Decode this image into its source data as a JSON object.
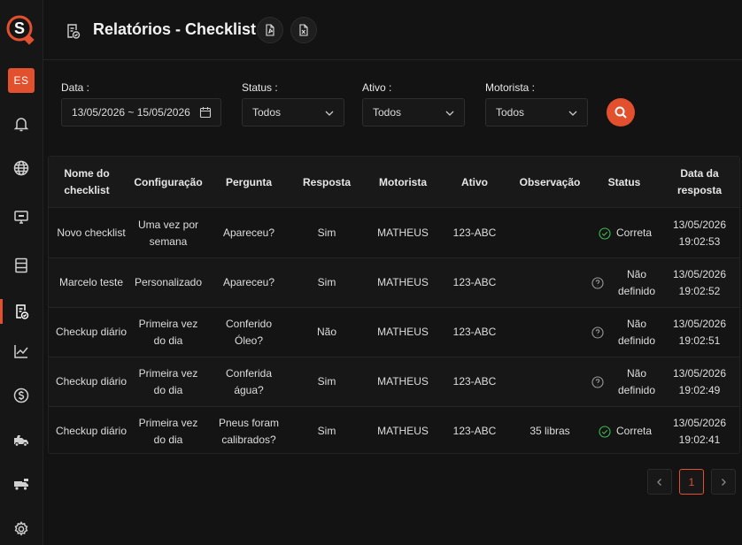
{
  "app": {
    "user_initials": "ES"
  },
  "header": {
    "title": "Relatórios - Checklist"
  },
  "filters": {
    "date": {
      "label": "Data :",
      "value": "13/05/2026 ~ 15/05/2026"
    },
    "status": {
      "label": "Status :",
      "value": "Todos"
    },
    "asset": {
      "label": "Ativo :",
      "value": "Todos"
    },
    "driver": {
      "label": "Motorista :",
      "value": "Todos"
    }
  },
  "table": {
    "headers": [
      "Nome do checklist",
      "Configuração",
      "Pergunta",
      "Resposta",
      "Motorista",
      "Ativo",
      "Observação",
      "Status",
      "Data da resposta"
    ],
    "rows": [
      {
        "name": "Novo checklist",
        "config": "Uma vez por semana",
        "question": "Apareceu?",
        "answer": "Sim",
        "driver": "MATHEUS",
        "asset": "123-ABC",
        "note": "",
        "status": "Correta",
        "status_type": "ok",
        "date": "13/05/2026 19:02:53"
      },
      {
        "name": "Marcelo teste",
        "config": "Personalizado",
        "question": "Apareceu?",
        "answer": "Sim",
        "driver": "MATHEUS",
        "asset": "123-ABC",
        "note": "",
        "status": "Não definido",
        "status_type": "undefined",
        "date": "13/05/2026 19:02:52"
      },
      {
        "name": "Checkup diário",
        "config": "Primeira vez do dia",
        "question": "Conferido Óleo?",
        "answer": "Não",
        "driver": "MATHEUS",
        "asset": "123-ABC",
        "note": "",
        "status": "Não definido",
        "status_type": "undefined",
        "date": "13/05/2026 19:02:51"
      },
      {
        "name": "Checkup diário",
        "config": "Primeira vez do dia",
        "question": "Conferida água?",
        "answer": "Sim",
        "driver": "MATHEUS",
        "asset": "123-ABC",
        "note": "",
        "status": "Não definido",
        "status_type": "undefined",
        "date": "13/05/2026 19:02:49"
      },
      {
        "name": "Checkup diário",
        "config": "Primeira vez do dia",
        "question": "Pneus foram calibrados?",
        "answer": "Sim",
        "driver": "MATHEUS",
        "asset": "123-ABC",
        "note": "35 libras",
        "status": "Correta",
        "status_type": "ok",
        "date": "13/05/2026 19:02:41"
      }
    ]
  },
  "pagination": {
    "current_page": "1"
  },
  "colors": {
    "accent": "#e2502e",
    "success": "#3fb950",
    "muted": "#9a9a9a"
  },
  "icons": {
    "sidebar": [
      "bell-icon",
      "globe-icon",
      "monitor-icon",
      "server-icon",
      "checklist-report-icon",
      "chart-icon",
      "dollar-icon",
      "truck-icon",
      "fleet-icon",
      "gear-icon"
    ]
  }
}
